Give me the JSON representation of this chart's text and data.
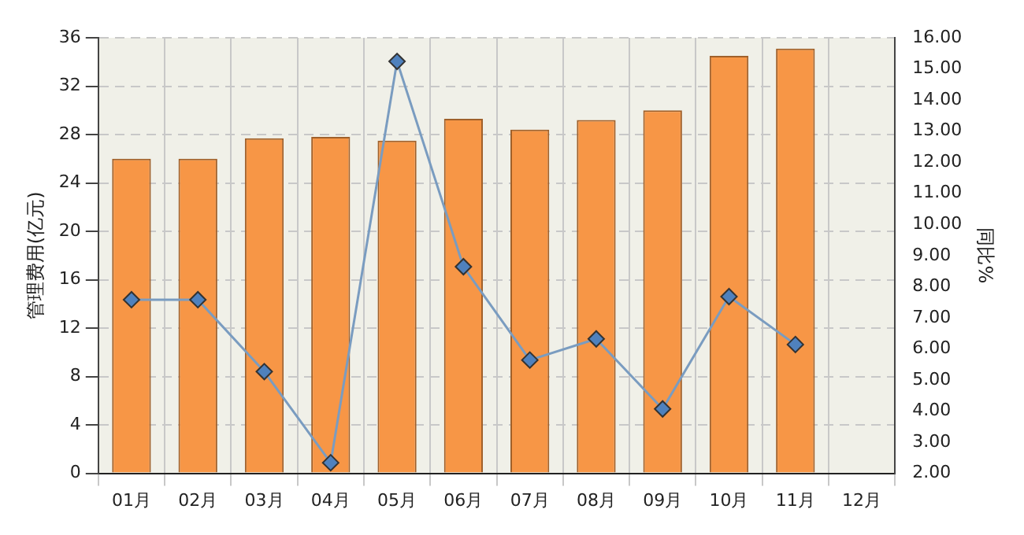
{
  "chart_data": {
    "type": "bar",
    "ylabel": "管理费用(亿元)",
    "y2label": "同比%",
    "categories": [
      "01月",
      "02月",
      "03月",
      "04月",
      "05月",
      "06月",
      "07月",
      "08月",
      "09月",
      "10月",
      "11月",
      "12月"
    ],
    "series": [
      {
        "color": "#f79646",
        "values": [
          26.0,
          26.0,
          27.7,
          27.8,
          27.5,
          29.3,
          28.4,
          29.2,
          30.0,
          34.5,
          35.1,
          null
        ]
      },
      {
        "type": "line",
        "axis": "y2",
        "color": "#4f81bd",
        "marker": "diamond",
        "values": [
          7.58,
          7.58,
          5.27,
          2.34,
          15.24,
          8.64,
          5.64,
          6.32,
          4.07,
          7.68,
          6.14,
          null
        ]
      }
    ],
    "ylim": [
      0,
      36
    ],
    "yticks": [
      0,
      4,
      8,
      12,
      16,
      20,
      24,
      28,
      32,
      36
    ],
    "y2lim": [
      2,
      16
    ],
    "y2ticks": [
      {
        "value": 2,
        "label": "2.00"
      },
      {
        "value": 3,
        "label": "3.00"
      },
      {
        "value": 4,
        "label": "4.00"
      },
      {
        "value": 5,
        "label": "5.00"
      },
      {
        "value": 6,
        "label": "6.00"
      },
      {
        "value": 7,
        "label": "7.00"
      },
      {
        "value": 8,
        "label": "8.00"
      },
      {
        "value": 9,
        "label": "9.00"
      },
      {
        "value": 10,
        "label": "10.00"
      },
      {
        "value": 11,
        "label": "11.00"
      },
      {
        "value": 12,
        "label": "12.00"
      },
      {
        "value": 13,
        "label": "13.00"
      },
      {
        "value": 14,
        "label": "14.00"
      },
      {
        "value": 15,
        "label": "15.00"
      },
      {
        "value": 16,
        "label": "16.00"
      }
    ],
    "grid": true,
    "legend": false
  }
}
